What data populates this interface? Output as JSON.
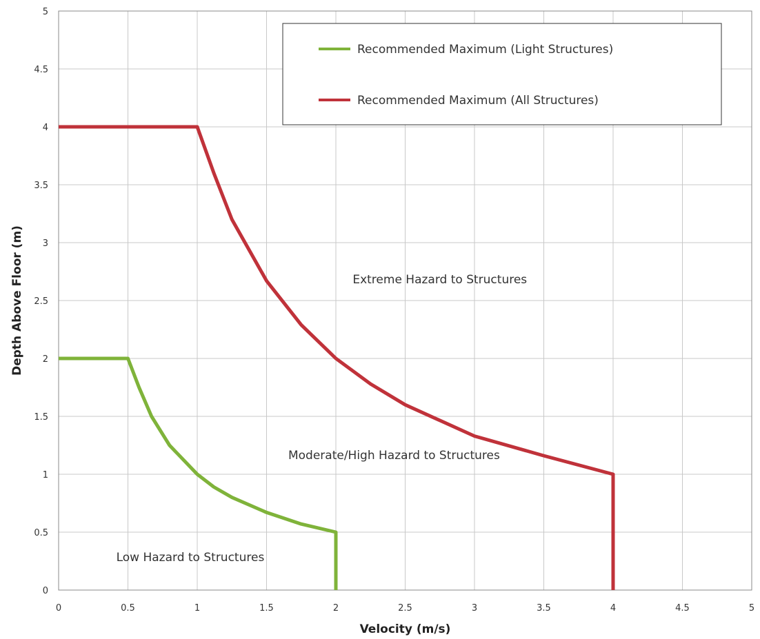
{
  "chart_data": {
    "type": "line",
    "xlabel": "Velocity (m/s)",
    "ylabel": "Depth Above Floor (m)",
    "xlim": [
      0,
      5
    ],
    "ylim": [
      0,
      5
    ],
    "xticks": [
      0,
      0.5,
      1,
      1.5,
      2,
      2.5,
      3,
      3.5,
      4,
      4.5,
      5
    ],
    "yticks": [
      0,
      0.5,
      1,
      1.5,
      2,
      2.5,
      3,
      3.5,
      4,
      4.5,
      5
    ],
    "xtick_labels": [
      "0",
      "0.5",
      "1",
      "1.5",
      "2",
      "2.5",
      "3",
      "3.5",
      "4",
      "4.5",
      "5"
    ],
    "ytick_labels": [
      "0",
      "0.5",
      "1",
      "1.5",
      "2",
      "2.5",
      "3",
      "3.5",
      "4",
      "4.5",
      "5"
    ],
    "grid": true,
    "legend_position": "top-right",
    "series": [
      {
        "name": "Recommended Maximum (Light Structures)",
        "color": "#7fb33a",
        "points": [
          [
            0,
            2
          ],
          [
            0.5,
            2
          ],
          [
            0.58,
            1.75
          ],
          [
            0.67,
            1.5
          ],
          [
            0.8,
            1.25
          ],
          [
            1,
            1
          ],
          [
            1.12,
            0.89
          ],
          [
            1.25,
            0.8
          ],
          [
            1.5,
            0.67
          ],
          [
            1.75,
            0.57
          ],
          [
            2,
            0.5
          ],
          [
            2,
            0
          ]
        ]
      },
      {
        "name": "Recommended Maximum (All Structures)",
        "color": "#c0323a",
        "points": [
          [
            0,
            4
          ],
          [
            1,
            4
          ],
          [
            1.12,
            3.6
          ],
          [
            1.25,
            3.2
          ],
          [
            1.5,
            2.67
          ],
          [
            1.75,
            2.29
          ],
          [
            2,
            2
          ],
          [
            2.25,
            1.78
          ],
          [
            2.5,
            1.6
          ],
          [
            3,
            1.33
          ],
          [
            3.5,
            1.16
          ],
          [
            4,
            1
          ],
          [
            4,
            0
          ]
        ]
      }
    ],
    "annotations": [
      {
        "text": "Extreme Hazard to Structures",
        "x": 2.75,
        "y": 2.65
      },
      {
        "text": "Moderate/High Hazard to Structures",
        "x": 2.42,
        "y": 1.13
      },
      {
        "text": "Low Hazard to Structures",
        "x": 0.95,
        "y": 0.25
      }
    ]
  }
}
